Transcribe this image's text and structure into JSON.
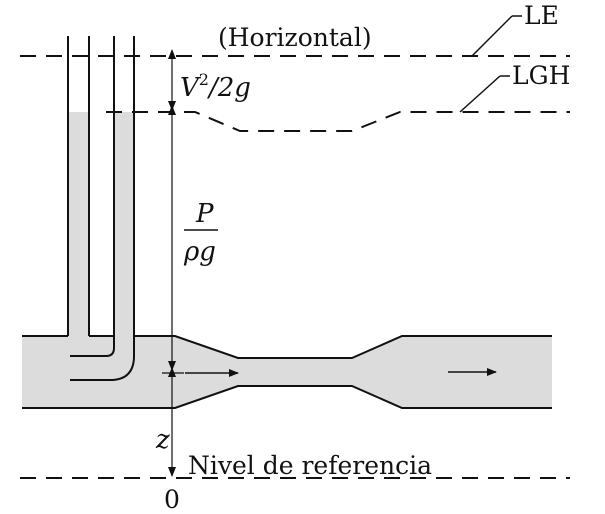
{
  "diagram": {
    "label_horizontal": "(Horizontal)",
    "label_le": "LE",
    "label_lgh": "LGH",
    "velocity_head": {
      "v": "V",
      "exp": "2",
      "rest": "/2g"
    },
    "pressure_head": {
      "numerator": "P",
      "denominator": "ρg"
    },
    "elevation_head": "z",
    "datum_label": "Nivel de referencia",
    "datum_value": "0"
  },
  "colors": {
    "fluid": "#dcdcdc",
    "stroke": "#111111"
  }
}
